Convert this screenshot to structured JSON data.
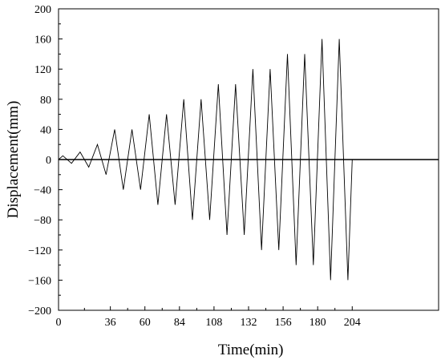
{
  "chart_data": {
    "type": "line",
    "xlabel": "Time(min)",
    "ylabel": "Displacement(mm)",
    "xlim": [
      0,
      264
    ],
    "ylim": [
      -200,
      200
    ],
    "x_ticks": [
      0,
      36,
      60,
      84,
      108,
      132,
      156,
      180,
      204
    ],
    "x_tick_labels": [
      "0",
      "36",
      "60",
      "84",
      "108",
      "132",
      "156",
      "180",
      "204"
    ],
    "y_ticks": [
      200,
      160,
      120,
      80,
      40,
      0,
      -40,
      -80,
      -120,
      -160,
      -200
    ],
    "y_tick_labels": [
      "200",
      "160",
      "120",
      "80",
      "40",
      "0",
      "−40",
      "−80",
      "−120",
      "−160",
      "−200"
    ],
    "zero_line": true,
    "grid": false,
    "series": [
      {
        "color": "#000000",
        "x": [
          0,
          3,
          9,
          15,
          21,
          27,
          33,
          39,
          45,
          51,
          57,
          63,
          69,
          75,
          81,
          87,
          93,
          99,
          105,
          111,
          117,
          123,
          129,
          135,
          141,
          147,
          153,
          159,
          165,
          171,
          177,
          183,
          189,
          195,
          201,
          204
        ],
        "y": [
          0,
          5,
          -5,
          10,
          -10,
          20,
          -20,
          40,
          -40,
          40,
          -40,
          60,
          -60,
          60,
          -60,
          80,
          -80,
          80,
          -80,
          100,
          -100,
          100,
          -100,
          120,
          -120,
          120,
          -120,
          140,
          -140,
          140,
          -140,
          160,
          -160,
          160,
          -160,
          0
        ]
      }
    ]
  }
}
